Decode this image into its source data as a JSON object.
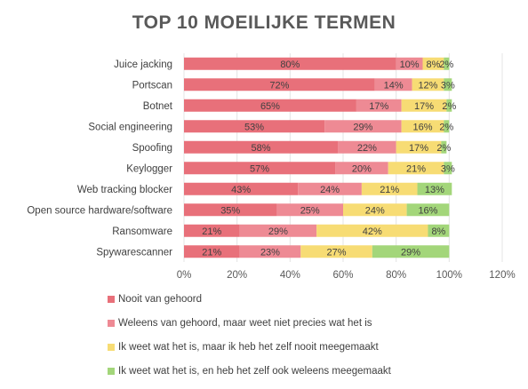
{
  "chart_data": {
    "type": "bar",
    "orientation": "horizontal",
    "stacked": true,
    "title": "TOP 10 MOEILIJKE TERMEN",
    "categories": [
      "Juice jacking",
      "Portscan",
      "Botnet",
      "Social engineering",
      "Spoofing",
      "Keylogger",
      "Web tracking blocker",
      "Open source hardware/software",
      "Ransomware",
      "Spywarescanner"
    ],
    "series": [
      {
        "name": "Nooit van gehoord",
        "color": "#e8707a",
        "values": [
          80,
          72,
          65,
          53,
          58,
          57,
          43,
          35,
          21,
          21
        ]
      },
      {
        "name": "Weleens van gehoord, maar weet niet precies wat het is",
        "color": "#ee8a94",
        "values": [
          10,
          14,
          17,
          29,
          22,
          20,
          24,
          25,
          29,
          23
        ]
      },
      {
        "name": "Ik weet wat het is, maar ik heb het zelf nooit meegemaakt",
        "color": "#f7dc74",
        "values": [
          8,
          12,
          17,
          16,
          17,
          21,
          21,
          24,
          42,
          27
        ]
      },
      {
        "name": "Ik weet wat het is, en heb het zelf ook weleens meegemaakt",
        "color": "#a3d67a",
        "values": [
          2,
          3,
          2,
          2,
          2,
          3,
          13,
          16,
          8,
          29
        ]
      }
    ],
    "xlim": [
      0,
      120
    ],
    "xticks": [
      "0%",
      "20%",
      "40%",
      "60%",
      "80%",
      "100%",
      "120%"
    ],
    "grid": true,
    "legend_position": "bottom"
  }
}
